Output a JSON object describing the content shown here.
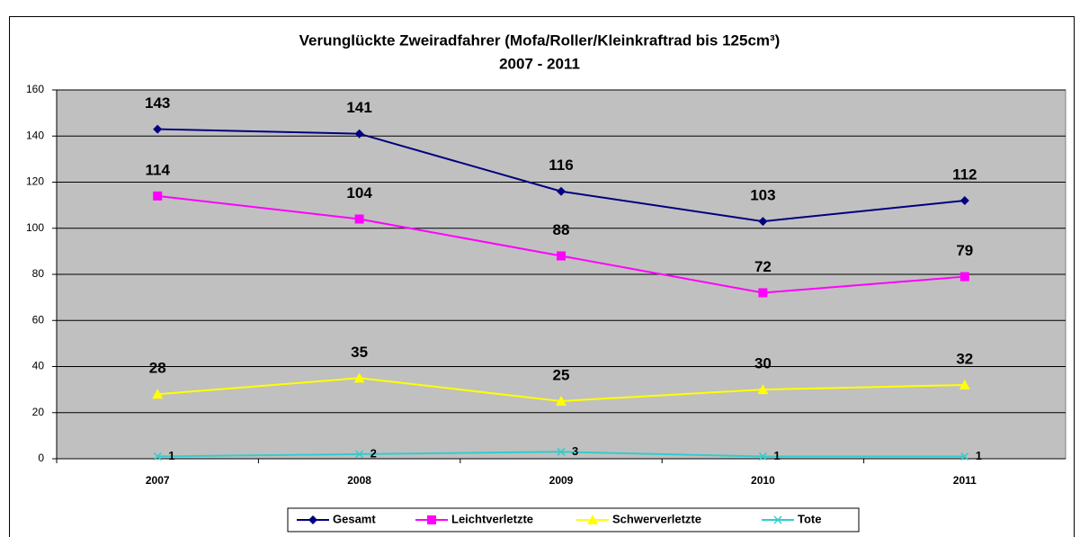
{
  "chart_data": {
    "type": "line",
    "title": "Verunglückte Zweiradfahrer (Mofa/Roller/Kleinkraftrad bis 125cm³)",
    "subtitle": "2007 - 2011",
    "categories": [
      "2007",
      "2008",
      "2009",
      "2010",
      "2011"
    ],
    "series": [
      {
        "name": "Gesamt",
        "color": "#000080",
        "marker": "diamond",
        "values": [
          143,
          141,
          116,
          103,
          112
        ]
      },
      {
        "name": "Leichtverletzte",
        "color": "#ff00ff",
        "marker": "square",
        "values": [
          114,
          104,
          88,
          72,
          79
        ]
      },
      {
        "name": "Schwerverletzte",
        "color": "#ffff00",
        "marker": "triangle",
        "values": [
          28,
          35,
          25,
          30,
          32
        ]
      },
      {
        "name": "Tote",
        "color": "#33cccc",
        "marker": "x",
        "values": [
          1,
          2,
          3,
          1,
          1
        ]
      }
    ],
    "ylim": [
      0,
      160
    ],
    "yticks": [
      0,
      20,
      40,
      60,
      80,
      100,
      120,
      140,
      160
    ],
    "grid": true,
    "legend": "bottom",
    "plot_background": "#c0c0c0"
  }
}
